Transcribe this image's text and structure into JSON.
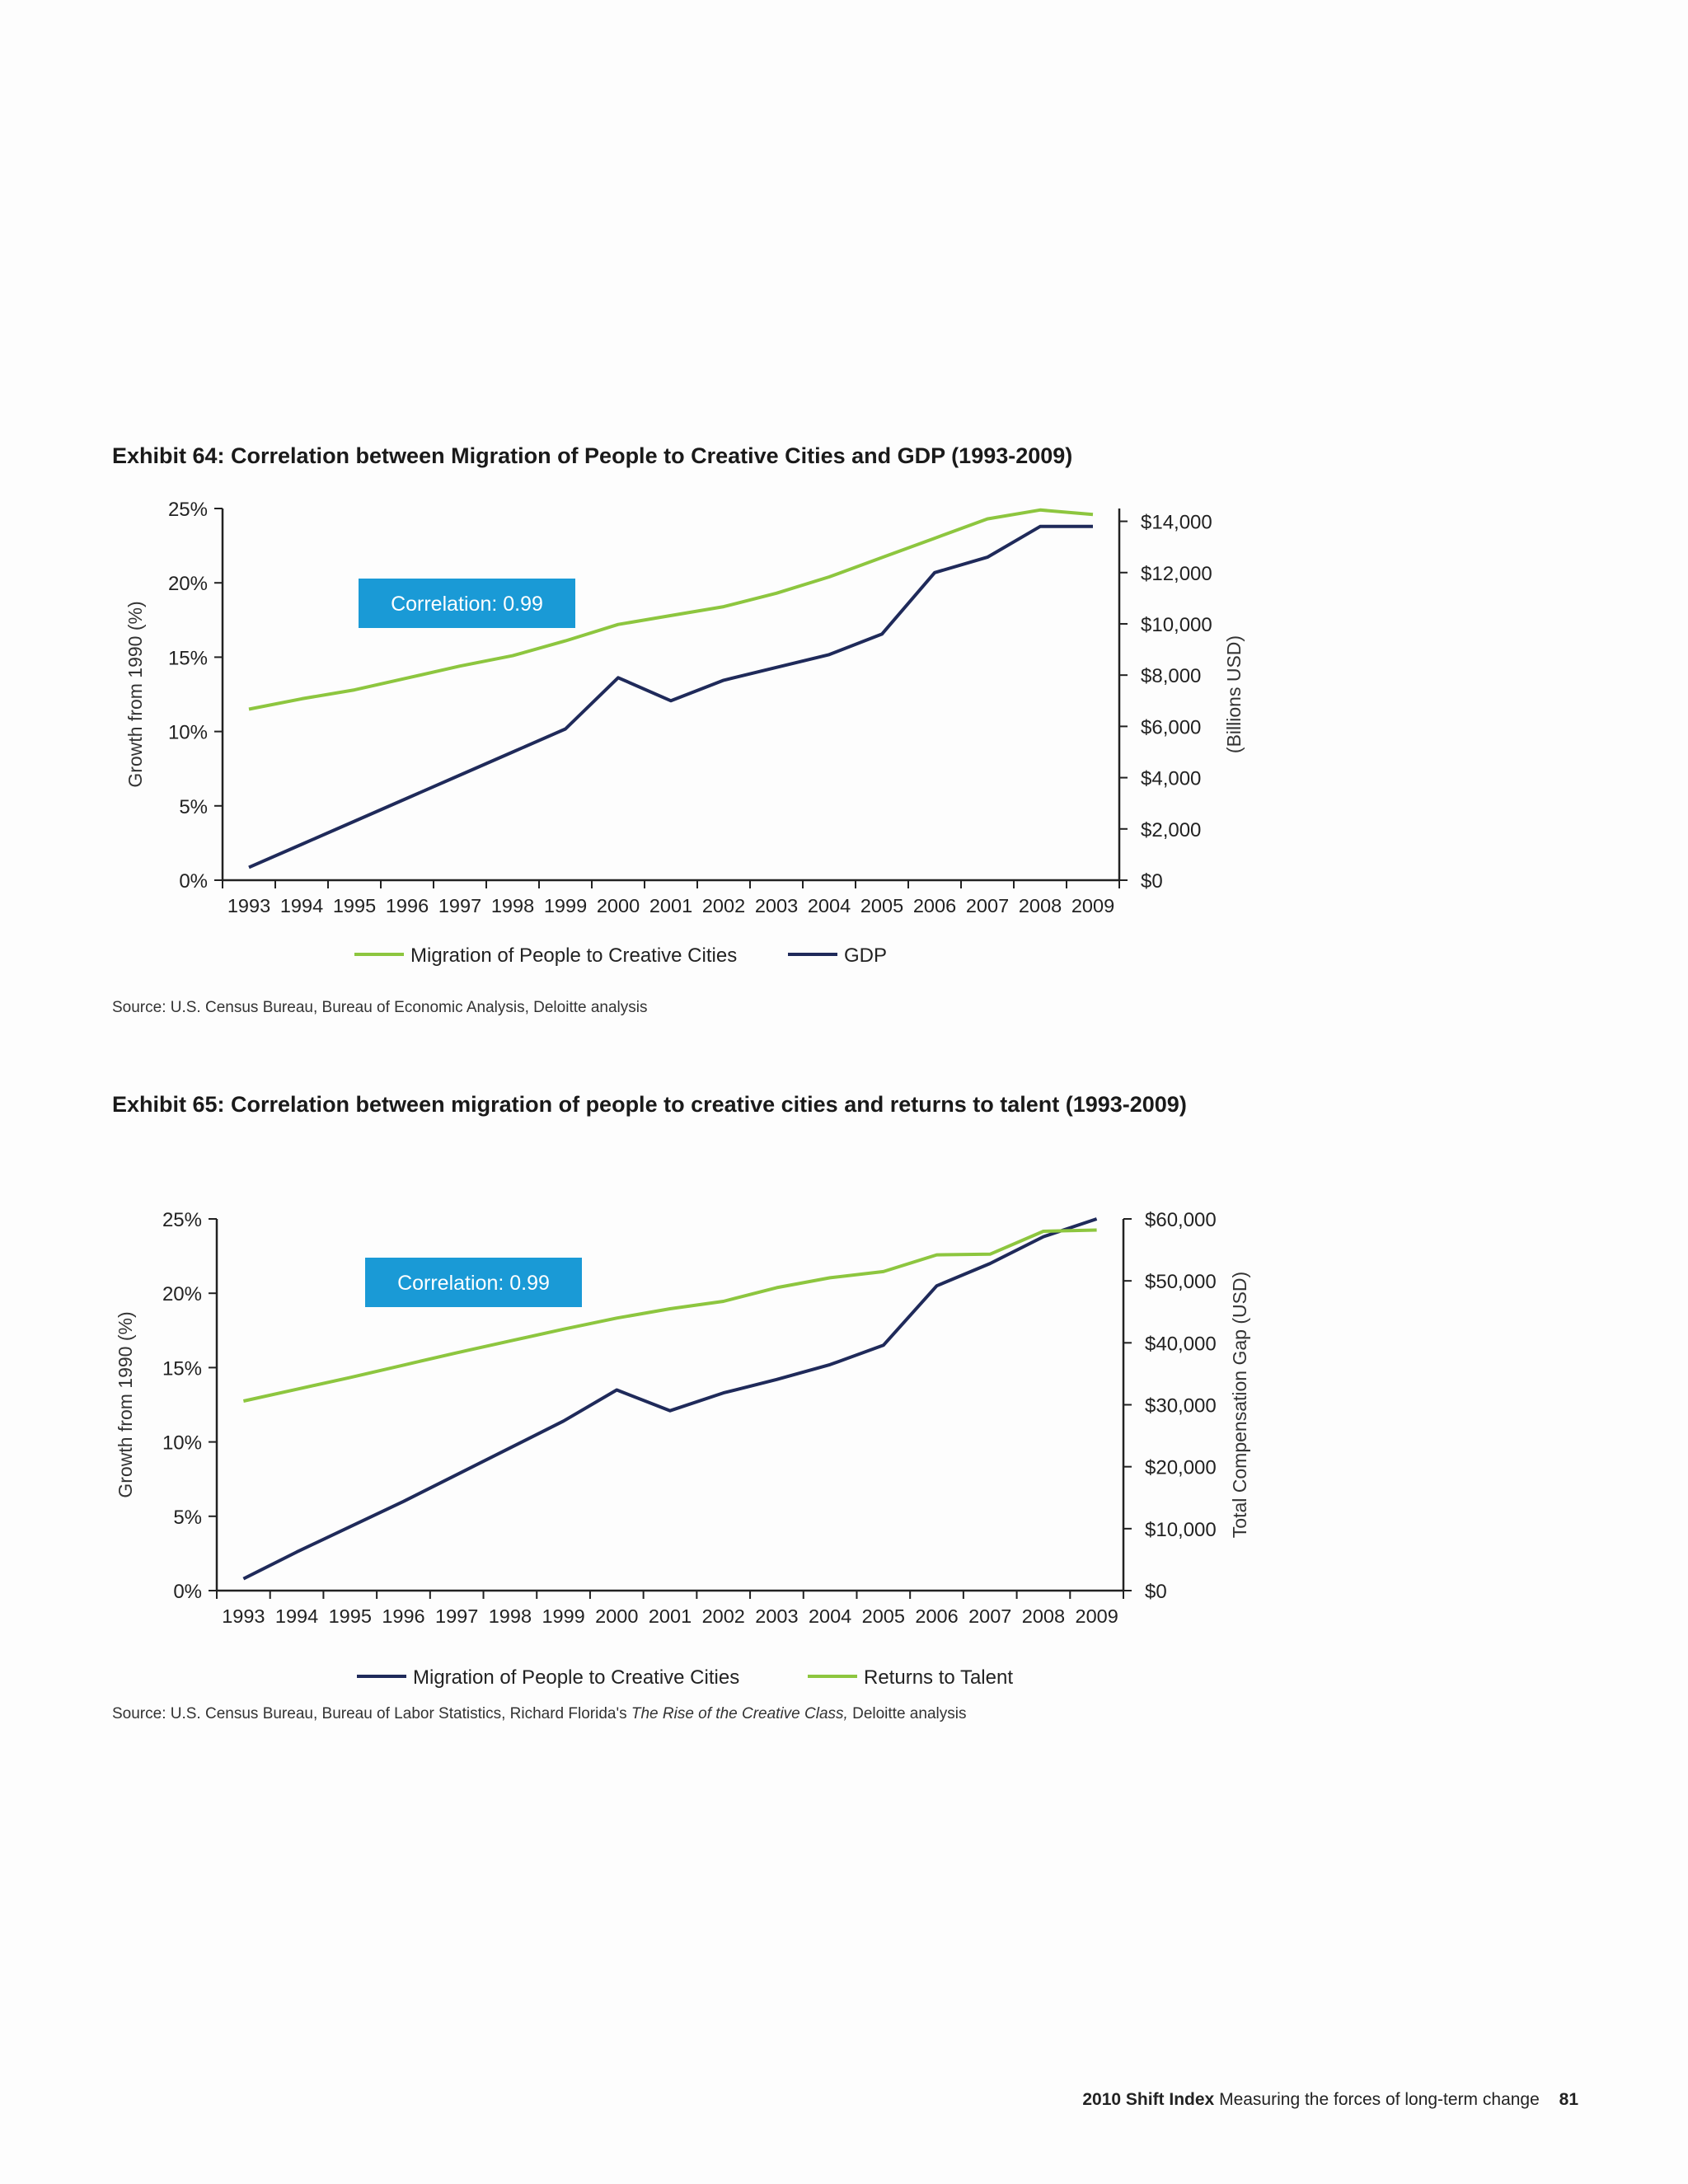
{
  "footer": {
    "brand": "2010 Shift Index",
    "tagline": "Measuring the forces of long-term change",
    "page_number": "81"
  },
  "colors": {
    "navy": "#1f2a5a",
    "green": "#8dc63f",
    "badge": "#1a9ad6"
  },
  "exhibit64": {
    "title": "Exhibit 64: Correlation between Migration of People to Creative Cities and GDP (1993-2009)",
    "source": "Source: U.S. Census Bureau, Bureau of Economic Analysis, Deloitte analysis",
    "correlation_label": "Correlation: 0.99",
    "chart_data": {
      "type": "line",
      "x": [
        "1993",
        "1994",
        "1995",
        "1996",
        "1997",
        "1998",
        "1999",
        "2000",
        "2001",
        "2002",
        "2003",
        "2004",
        "2005",
        "2006",
        "2007",
        "2008",
        "2009"
      ],
      "ylabel": "Growth from 1990 (%)",
      "y2label": "(Billions USD)",
      "ylim": [
        0,
        25
      ],
      "y2lim": [
        0,
        14500
      ],
      "yticks": [
        "0%",
        "5%",
        "10%",
        "15%",
        "20%",
        "25%"
      ],
      "y2ticks": [
        "$0",
        "$2,000",
        "$4,000",
        "$6,000",
        "$8,000",
        "$10,000",
        "$12,000",
        "$14,000"
      ],
      "legend_position": "bottom",
      "series": [
        {
          "name": "Migration of People to Creative Cities",
          "axis": "left",
          "color": "#8dc63f",
          "values": [
            11.5,
            12.2,
            12.8,
            13.6,
            14.4,
            15.1,
            16.1,
            17.2,
            17.8,
            18.4,
            19.3,
            20.4,
            21.7,
            23.0,
            24.3,
            24.9,
            24.6
          ]
        },
        {
          "name": "GDP",
          "axis": "right",
          "color": "#1f2a5a",
          "values": [
            500,
            1400,
            2300,
            3200,
            4100,
            5000,
            5900,
            7900,
            7000,
            7800,
            8300,
            8800,
            9600,
            12000,
            12600,
            13800,
            13800
          ]
        }
      ]
    }
  },
  "exhibit65": {
    "title": "Exhibit 65: Correlation between migration of people to creative cities and returns to talent (1993-2009)",
    "source_prefix": "Source: U.S. Census Bureau, Bureau of Labor Statistics, Richard Florida's ",
    "source_italic": "The Rise of the Creative Class,",
    "source_suffix": " Deloitte analysis",
    "correlation_label": "Correlation: 0.99",
    "chart_data": {
      "type": "line",
      "x": [
        "1993",
        "1994",
        "1995",
        "1996",
        "1997",
        "1998",
        "1999",
        "2000",
        "2001",
        "2002",
        "2003",
        "2004",
        "2005",
        "2006",
        "2007",
        "2008",
        "2009"
      ],
      "ylabel": "Growth from 1990 (%)",
      "y2label": "Total Compensation Gap (USD)",
      "ylim": [
        0,
        25
      ],
      "y2lim": [
        0,
        60000
      ],
      "yticks": [
        "0%",
        "5%",
        "10%",
        "15%",
        "20%",
        "25%"
      ],
      "y2ticks": [
        "$0",
        "$10,000",
        "$20,000",
        "$30,000",
        "$40,000",
        "$50,000",
        "$60,000"
      ],
      "legend_position": "bottom",
      "series": [
        {
          "name": "Migration of People to Creative Cities",
          "axis": "left",
          "color": "#1f2a5a",
          "values": [
            0.8,
            2.6,
            4.3,
            6.0,
            7.8,
            9.6,
            11.4,
            13.5,
            12.1,
            13.3,
            14.2,
            15.2,
            16.5,
            20.5,
            22.0,
            23.8,
            25.0
          ]
        },
        {
          "name": "Returns to Talent",
          "axis": "right",
          "color": "#8dc63f",
          "values": [
            30600,
            32500,
            34400,
            36400,
            38400,
            40300,
            42200,
            44000,
            45500,
            46700,
            48900,
            50500,
            51500,
            54200,
            54300,
            58000,
            58200
          ]
        }
      ]
    }
  }
}
